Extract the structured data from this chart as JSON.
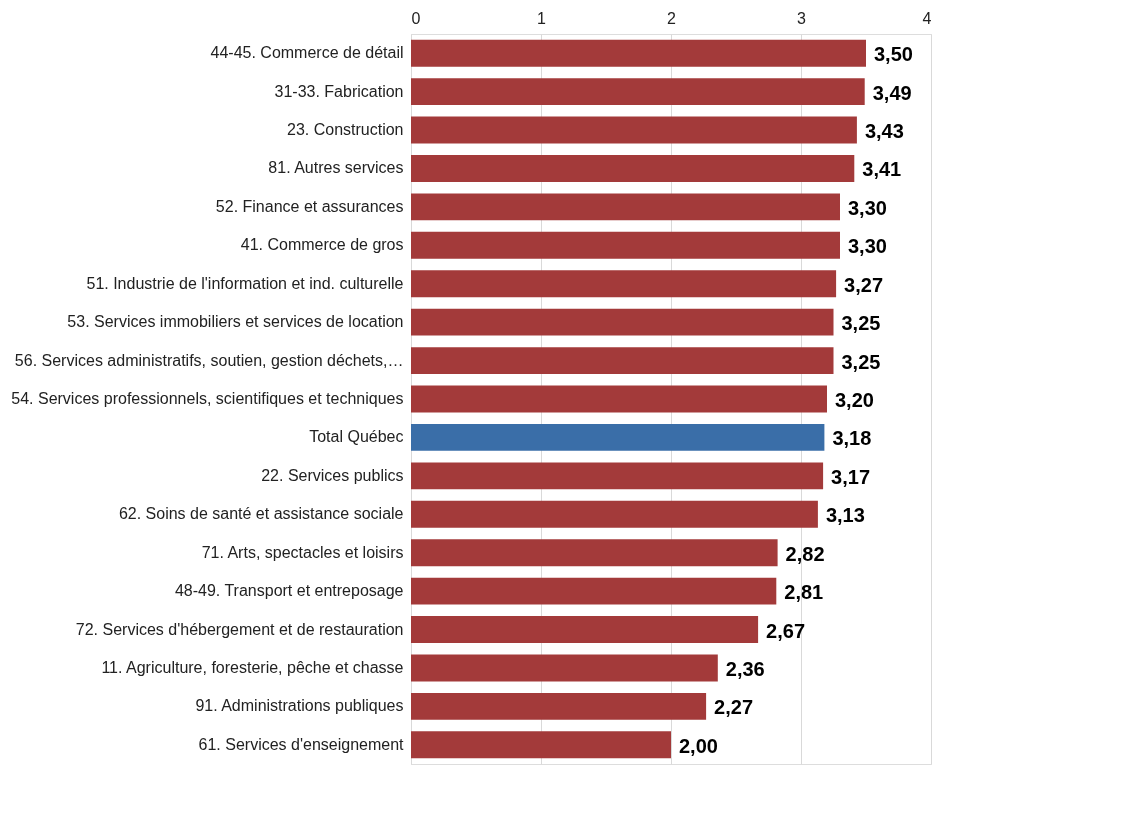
{
  "chart_data": {
    "type": "bar",
    "orientation": "horizontal",
    "categories": [
      "44-45. Commerce de détail",
      "31-33. Fabrication",
      "23. Construction",
      "81. Autres services",
      "52. Finance et assurances",
      "41. Commerce de gros",
      "51. Industrie de l'information et ind. culturelle",
      "53. Services immobiliers et services de location",
      "56. Services administratifs, soutien, gestion déchets,…",
      "54. Services professionnels, scientifiques et techniques",
      "Total Québec",
      "22. Services publics",
      "62. Soins de santé et assistance sociale",
      "71. Arts, spectacles et loisirs",
      "48-49. Transport et entreposage",
      "72. Services d'hébergement et de restauration",
      "11. Agriculture, foresterie, pêche et chasse",
      "91. Administrations publiques",
      "61. Services d'enseignement"
    ],
    "values": [
      3.5,
      3.49,
      3.43,
      3.41,
      3.3,
      3.3,
      3.27,
      3.25,
      3.25,
      3.2,
      3.18,
      3.17,
      3.13,
      2.82,
      2.81,
      2.67,
      2.36,
      2.27,
      2.0
    ],
    "value_labels": [
      "3,50",
      "3,49",
      "3,43",
      "3,41",
      "3,30",
      "3,30",
      "3,27",
      "3,25",
      "3,25",
      "3,20",
      "3,18",
      "3,17",
      "3,13",
      "2,82",
      "2,81",
      "2,67",
      "2,36",
      "2,27",
      "2,00"
    ],
    "colors": [
      "#a33a3a",
      "#a33a3a",
      "#a33a3a",
      "#a33a3a",
      "#a33a3a",
      "#a33a3a",
      "#a33a3a",
      "#a33a3a",
      "#a33a3a",
      "#a33a3a",
      "#3a6ea8",
      "#a33a3a",
      "#a33a3a",
      "#a33a3a",
      "#a33a3a",
      "#a33a3a",
      "#a33a3a",
      "#a33a3a",
      "#a33a3a"
    ],
    "xlim": [
      0,
      4
    ],
    "xticks": [
      0,
      1,
      2,
      3,
      4
    ],
    "grid": "x"
  }
}
